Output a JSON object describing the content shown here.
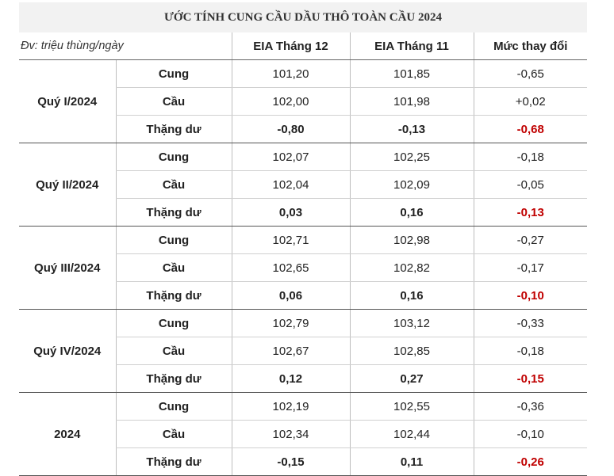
{
  "title": "ƯỚC TÍNH CUNG CẦU DẦU THÔ TOÀN CẦU 2024",
  "unit": "Đv: triệu thùng/ngày",
  "headers": [
    "EIA Tháng 12",
    "EIA Tháng 11",
    "Mức thay đổi"
  ],
  "groups": [
    {
      "label": "Quý I/2024",
      "rows": [
        {
          "label": "Cung",
          "dec": "101,20",
          "nov": "101,85",
          "chg": "-0,65"
        },
        {
          "label": "Cầu",
          "dec": "102,00",
          "nov": "101,98",
          "chg": "+0,02"
        },
        {
          "label": "Thặng dư",
          "dec": "-0,80",
          "nov": "-0,13",
          "chg": "-0,68"
        }
      ]
    },
    {
      "label": "Quý II/2024",
      "rows": [
        {
          "label": "Cung",
          "dec": "102,07",
          "nov": "102,25",
          "chg": "-0,18"
        },
        {
          "label": "Cầu",
          "dec": "102,04",
          "nov": "102,09",
          "chg": "-0,05"
        },
        {
          "label": "Thặng dư",
          "dec": "0,03",
          "nov": "0,16",
          "chg": "-0,13"
        }
      ]
    },
    {
      "label": "Quý III/2024",
      "rows": [
        {
          "label": "Cung",
          "dec": "102,71",
          "nov": "102,98",
          "chg": "-0,27"
        },
        {
          "label": "Cầu",
          "dec": "102,65",
          "nov": "102,82",
          "chg": "-0,17"
        },
        {
          "label": "Thặng dư",
          "dec": "0,06",
          "nov": "0,16",
          "chg": "-0,10"
        }
      ]
    },
    {
      "label": "Quý IV/2024",
      "rows": [
        {
          "label": "Cung",
          "dec": "102,79",
          "nov": "103,12",
          "chg": "-0,33"
        },
        {
          "label": "Cầu",
          "dec": "102,67",
          "nov": "102,85",
          "chg": "-0,18"
        },
        {
          "label": "Thặng dư",
          "dec": "0,12",
          "nov": "0,27",
          "chg": "-0,15"
        }
      ]
    },
    {
      "label": "2024",
      "rows": [
        {
          "label": "Cung",
          "dec": "102,19",
          "nov": "102,55",
          "chg": "-0,36"
        },
        {
          "label": "Cầu",
          "dec": "102,34",
          "nov": "102,44",
          "chg": "-0,10"
        },
        {
          "label": "Thặng dư",
          "dec": "-0,15",
          "nov": "0,11",
          "chg": "-0,26"
        }
      ]
    }
  ],
  "colors": {
    "title_bg": "#f2f2f2",
    "negative_change": "#c00000"
  }
}
